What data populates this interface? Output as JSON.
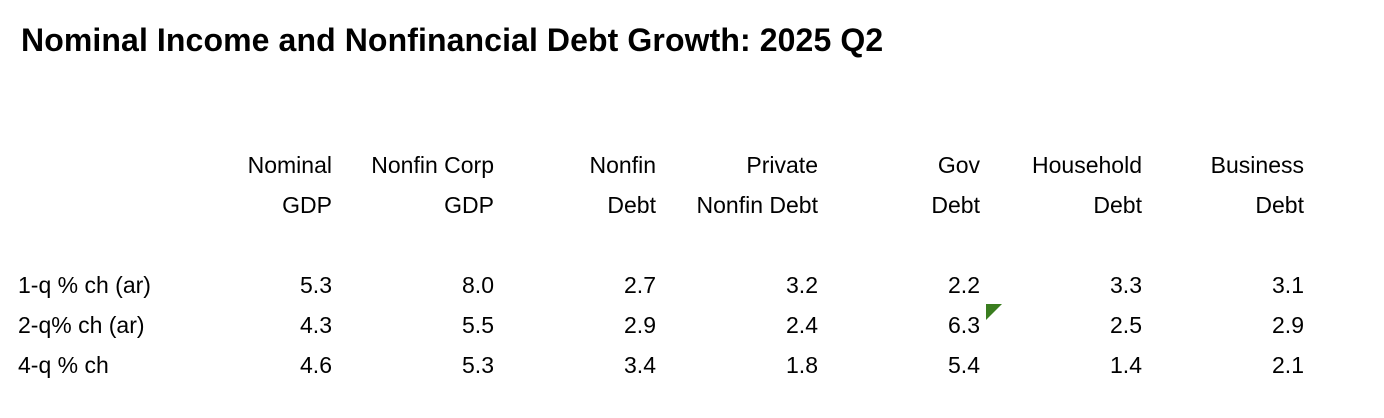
{
  "title": "Nominal Income and Nonfinancial Debt Growth: 2025 Q2",
  "columns": [
    {
      "line1": "Nominal",
      "line2": "GDP"
    },
    {
      "line1": "Nonfin Corp",
      "line2": "GDP"
    },
    {
      "line1": "Nonfin",
      "line2": "Debt"
    },
    {
      "line1": "Private",
      "line2": "Nonfin Debt"
    },
    {
      "line1": "Gov",
      "line2": "Debt"
    },
    {
      "line1": "Household",
      "line2": "Debt"
    },
    {
      "line1": "Business",
      "line2": "Debt"
    }
  ],
  "rows": [
    {
      "label": "1-q % ch (ar)",
      "values": [
        "5.3",
        "8.0",
        "2.7",
        "3.2",
        "2.2",
        "3.3",
        "3.1"
      ]
    },
    {
      "label": "2-q% ch (ar)",
      "values": [
        "4.3",
        "5.5",
        "2.9",
        "2.4",
        "6.3",
        "2.5",
        "2.9"
      ]
    },
    {
      "label": "4-q % ch",
      "values": [
        "4.6",
        "5.3",
        "3.4",
        "1.8",
        "5.4",
        "1.4",
        "2.1"
      ]
    }
  ],
  "comment_marker_color": "#3a7d1f"
}
